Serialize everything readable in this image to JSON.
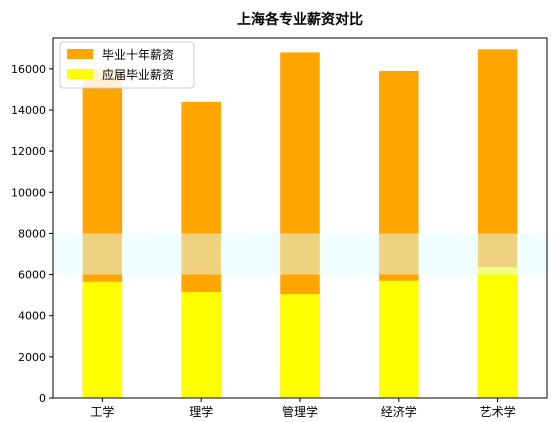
{
  "chart_data": {
    "type": "bar",
    "title": "上海各专业薪资对比",
    "categories": [
      "工学",
      "理学",
      "管理学",
      "经济学",
      "艺术学"
    ],
    "series": [
      {
        "name": "毕业十年薪资",
        "values": [
          16000,
          14400,
          16800,
          15900,
          16950
        ],
        "color": "#FFA500"
      },
      {
        "name": "应届毕业薪资",
        "values": [
          5650,
          5150,
          5050,
          5700,
          6350
        ],
        "color": "#FFFF00"
      }
    ],
    "highlight_band": {
      "y_from": 6000,
      "y_to": 8000,
      "color": "#E0FFFF"
    },
    "ylim": [
      0,
      17500
    ],
    "yticks": [
      0,
      2000,
      4000,
      6000,
      8000,
      10000,
      12000,
      14000,
      16000
    ],
    "xlabel": "",
    "ylabel": "",
    "legend_position": "upper-left",
    "grid": false
  }
}
